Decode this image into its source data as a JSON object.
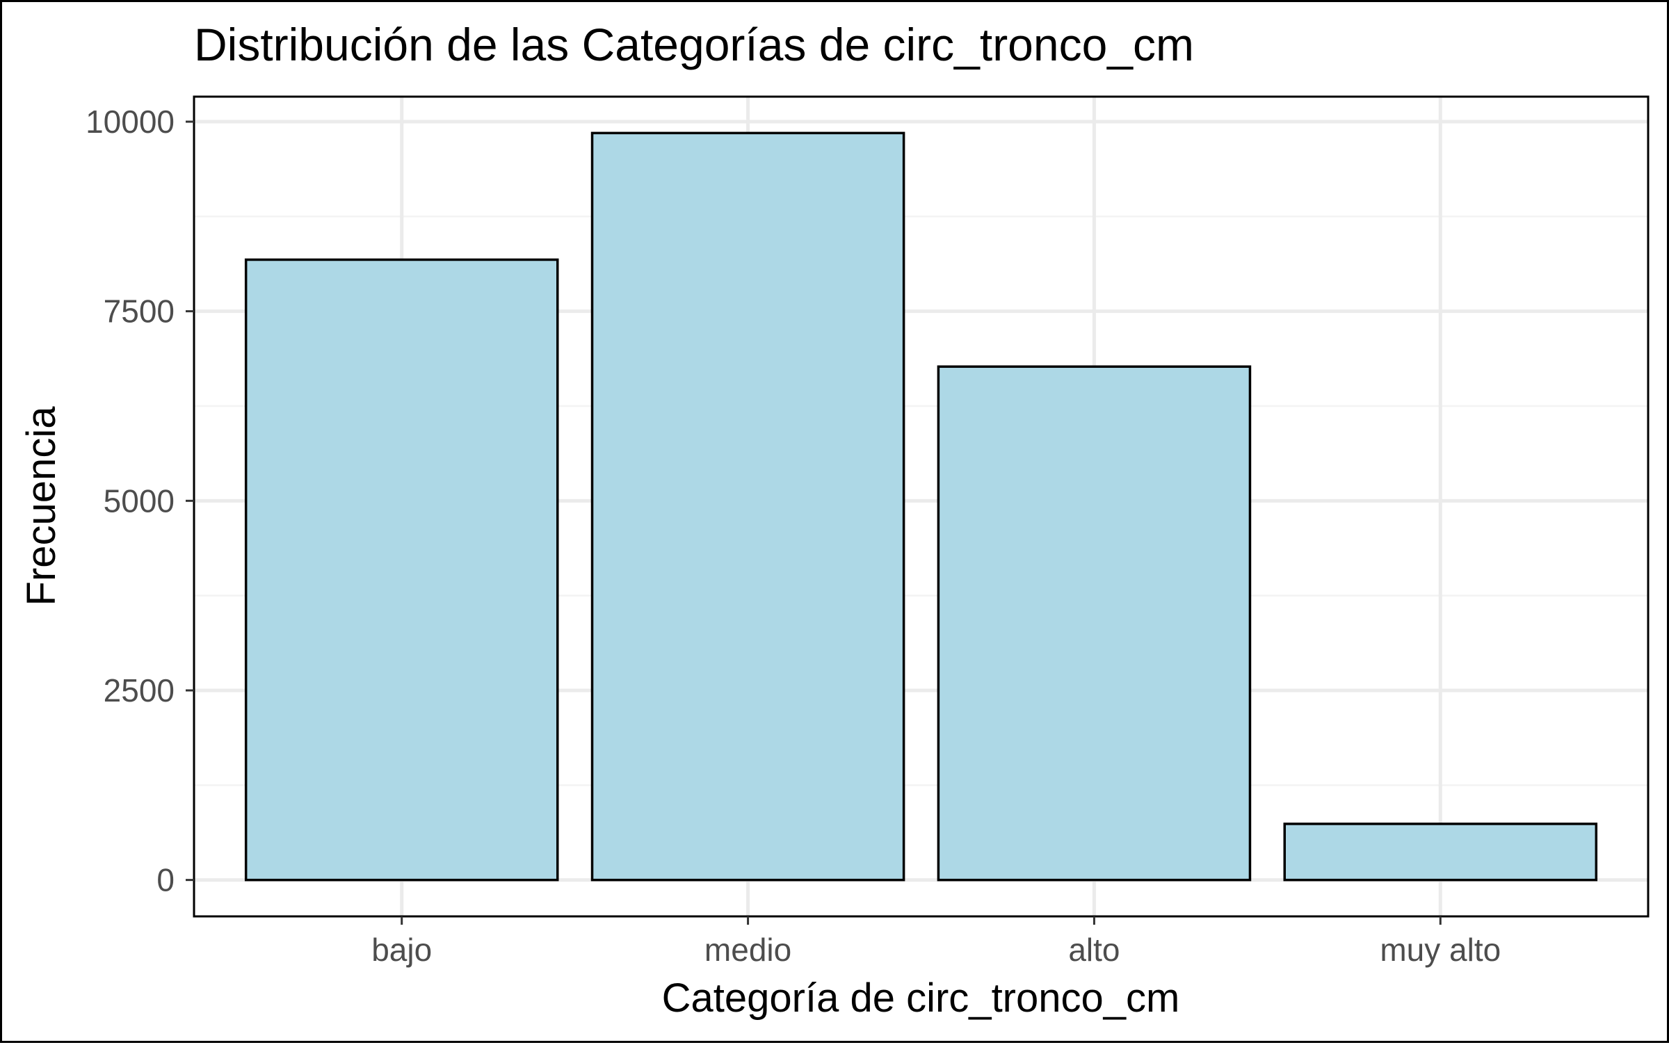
{
  "chart_data": {
    "type": "bar",
    "title": "Distribución de las Categorías de circ_tronco_cm",
    "xlabel": "Categoría de circ_tronco_cm",
    "ylabel": "Frecuencia",
    "categories": [
      "bajo",
      "medio",
      "alto",
      "muy alto"
    ],
    "values": [
      8180,
      9850,
      6770,
      740
    ],
    "ylim": [
      -480,
      10330
    ],
    "yticks": [
      0,
      2500,
      5000,
      7500,
      10000
    ],
    "yticks_labels": [
      "0",
      "2500",
      "5000",
      "7500",
      "10000"
    ],
    "grid": true,
    "legend": "none",
    "colors": {
      "bar_fill": "#ADD8E6",
      "bar_stroke": "#000000",
      "grid_major": "#EBEBEB",
      "grid_minor": "#F3F3F3",
      "panel_border": "#000000",
      "tick_text": "#4D4D4D"
    }
  }
}
